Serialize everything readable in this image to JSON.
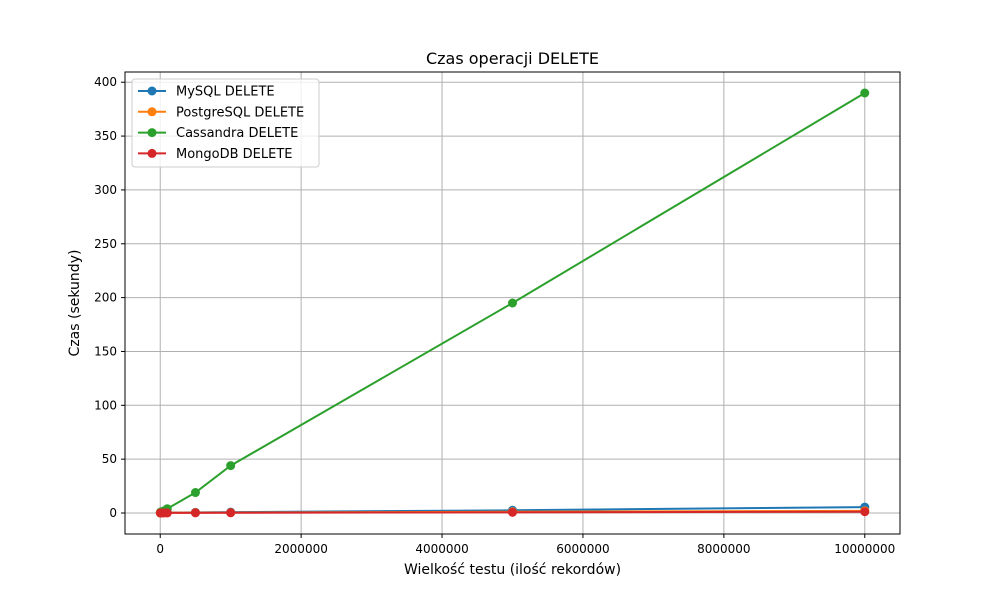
{
  "chart_data": {
    "type": "line",
    "title": "Czas operacji DELETE",
    "xlabel": "Wielkość testu (ilość rekordów)",
    "ylabel": "Czas (sekundy)",
    "xlim": [
      -500000,
      10500000
    ],
    "ylim": [
      -19.5,
      409.5
    ],
    "xticks": [
      0,
      2000000,
      4000000,
      6000000,
      8000000,
      10000000
    ],
    "xtick_labels": [
      "0",
      "2000000",
      "4000000",
      "6000000",
      "8000000",
      "10000000"
    ],
    "yticks": [
      0,
      50,
      100,
      150,
      200,
      250,
      300,
      350,
      400
    ],
    "ytick_labels": [
      "0",
      "50",
      "100",
      "150",
      "200",
      "250",
      "300",
      "350",
      "400"
    ],
    "grid": true,
    "legend_position": "top-left",
    "series": [
      {
        "name": "MySQL DELETE",
        "color": "#1f77b4",
        "marker": "circle",
        "x": [
          1000,
          10000,
          50000,
          100000,
          500000,
          1000000,
          5000000,
          10000000
        ],
        "y": [
          0.1,
          0.2,
          0.3,
          0.4,
          0.6,
          0.8,
          2.5,
          5.5
        ]
      },
      {
        "name": "PostgreSQL DELETE",
        "color": "#ff7f0e",
        "marker": "circle",
        "x": [
          1000,
          10000,
          50000,
          100000,
          500000,
          1000000,
          5000000,
          10000000
        ],
        "y": [
          0.05,
          0.1,
          0.1,
          0.2,
          0.3,
          0.4,
          1.2,
          2.0
        ]
      },
      {
        "name": "Cassandra DELETE",
        "color": "#2ca02c",
        "marker": "circle",
        "x": [
          1000,
          10000,
          50000,
          100000,
          500000,
          1000000,
          5000000,
          10000000
        ],
        "y": [
          0.5,
          1.0,
          2.0,
          4.0,
          19.0,
          44.0,
          195.0,
          390.0
        ]
      },
      {
        "name": "MongoDB DELETE",
        "color": "#d62728",
        "marker": "circle",
        "x": [
          1000,
          10000,
          50000,
          100000,
          500000,
          1000000,
          5000000,
          10000000
        ],
        "y": [
          0.02,
          0.05,
          0.08,
          0.1,
          0.15,
          0.2,
          0.6,
          1.2
        ]
      }
    ]
  }
}
